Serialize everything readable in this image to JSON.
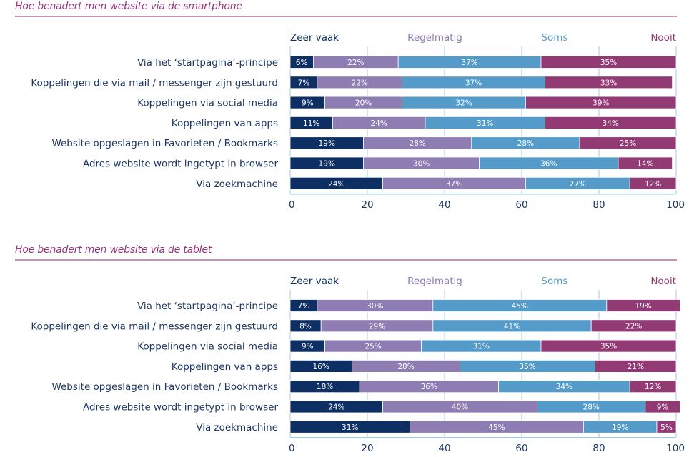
{
  "colors": {
    "zeer_vaak": "#0d2f63",
    "regelmatig": "#8e7db2",
    "soms": "#549bc9",
    "nooit": "#923a74",
    "title": "#94357a",
    "grid": "#9fcbe3",
    "text": "#1c3664"
  },
  "chart_data": [
    {
      "type": "bar",
      "orientation": "horizontal-stacked",
      "title": "Hoe benadert men website via de smartphone",
      "categories": [
        "Via het ‘startpagina’-principe",
        "Koppelingen die via mail / messenger zijn gestuurd",
        "Koppelingen via social media",
        "Koppelingen van apps",
        "Website opgeslagen in Favorieten / Bookmarks",
        "Adres website wordt ingetypt in browser",
        "Via zoekmachine"
      ],
      "series": [
        {
          "name": "Zeer vaak",
          "values": [
            6,
            7,
            9,
            11,
            19,
            19,
            24
          ]
        },
        {
          "name": "Regelmatig",
          "values": [
            22,
            22,
            20,
            24,
            28,
            30,
            37
          ]
        },
        {
          "name": "Soms",
          "values": [
            37,
            37,
            32,
            31,
            28,
            36,
            27
          ]
        },
        {
          "name": "Nooit",
          "values": [
            35,
            33,
            39,
            34,
            25,
            14,
            12
          ]
        }
      ],
      "xlim": [
        0,
        100
      ],
      "xticks": [
        "0",
        "20",
        "40",
        "60",
        "80",
        "100"
      ],
      "xlabel": "",
      "ylabel": "",
      "grid": true,
      "legend_position": "top"
    },
    {
      "type": "bar",
      "orientation": "horizontal-stacked",
      "title": "Hoe benadert men website via de tablet",
      "categories": [
        "Via het ‘startpagina’-principe",
        "Koppelingen die via mail / messenger zijn gestuurd",
        "Koppelingen via social media",
        "Koppelingen van apps",
        "Website opgeslagen in Favorieten / Bookmarks",
        "Adres website wordt ingetypt in browser",
        "Via zoekmachine"
      ],
      "series": [
        {
          "name": "Zeer vaak",
          "values": [
            7,
            8,
            9,
            16,
            18,
            24,
            31
          ]
        },
        {
          "name": "Regelmatig",
          "values": [
            30,
            29,
            25,
            28,
            36,
            40,
            45
          ]
        },
        {
          "name": "Soms",
          "values": [
            45,
            41,
            31,
            35,
            34,
            28,
            19
          ]
        },
        {
          "name": "Nooit",
          "values": [
            19,
            22,
            35,
            21,
            12,
            9,
            5
          ]
        }
      ],
      "xlim": [
        0,
        100
      ],
      "xticks": [
        "0",
        "20",
        "40",
        "60",
        "80",
        "100"
      ],
      "xlabel": "",
      "ylabel": "",
      "grid": true,
      "legend_position": "top"
    }
  ]
}
